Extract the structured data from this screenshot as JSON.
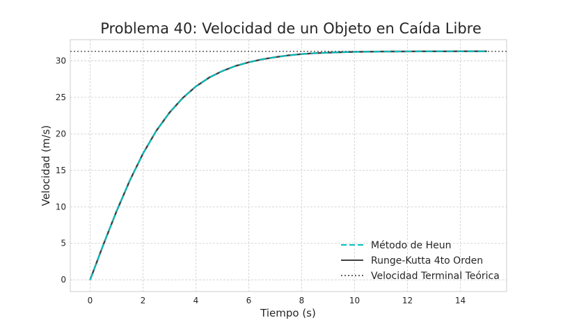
{
  "chart_data": {
    "type": "line",
    "title": "Problema 40: Velocidad de un Objeto en Caída Libre",
    "xlabel": "Tiempo (s)",
    "ylabel": "Velocidad (m/s)",
    "xlim": [
      -0.75,
      15.75
    ],
    "ylim": [
      -1.6,
      32.9
    ],
    "xticks": [
      0,
      2,
      4,
      6,
      8,
      10,
      12,
      14
    ],
    "yticks": [
      0,
      5,
      10,
      15,
      20,
      25,
      30
    ],
    "grid": true,
    "legend_position": "lower-right",
    "series": [
      {
        "name": "Método de Heun",
        "color": "#00bfbf",
        "style": "dashed",
        "x": [
          0,
          0.5,
          1,
          1.5,
          2,
          2.5,
          3,
          3.5,
          4,
          4.5,
          5,
          5.5,
          6,
          6.5,
          7,
          7.5,
          8,
          8.5,
          9,
          9.5,
          10,
          10.5,
          11,
          11.5,
          12,
          12.5,
          13,
          13.5,
          14,
          14.5,
          15
        ],
        "y": [
          0,
          4.81,
          9.4,
          13.6,
          17.3,
          20.4,
          22.9,
          24.9,
          26.5,
          27.7,
          28.6,
          29.3,
          29.8,
          30.2,
          30.5,
          30.75,
          30.93,
          31.05,
          31.12,
          31.18,
          31.22,
          31.25,
          31.27,
          31.28,
          31.29,
          31.3,
          31.3,
          31.3,
          31.31,
          31.31,
          31.31
        ]
      },
      {
        "name": "Runge-Kutta 4to Orden",
        "color": "#404040",
        "style": "solid",
        "x": [
          0,
          0.5,
          1,
          1.5,
          2,
          2.5,
          3,
          3.5,
          4,
          4.5,
          5,
          5.5,
          6,
          6.5,
          7,
          7.5,
          8,
          8.5,
          9,
          9.5,
          10,
          10.5,
          11,
          11.5,
          12,
          12.5,
          13,
          13.5,
          14,
          14.5,
          15
        ],
        "y": [
          0,
          4.81,
          9.4,
          13.6,
          17.3,
          20.4,
          22.9,
          24.9,
          26.5,
          27.7,
          28.6,
          29.3,
          29.8,
          30.2,
          30.5,
          30.75,
          30.93,
          31.05,
          31.12,
          31.18,
          31.22,
          31.25,
          31.27,
          31.28,
          31.29,
          31.3,
          31.3,
          31.3,
          31.31,
          31.31,
          31.31
        ]
      },
      {
        "name": "Velocidad Terminal Teórica",
        "color": "#666666",
        "style": "dotted",
        "hline": 31.3
      }
    ]
  }
}
